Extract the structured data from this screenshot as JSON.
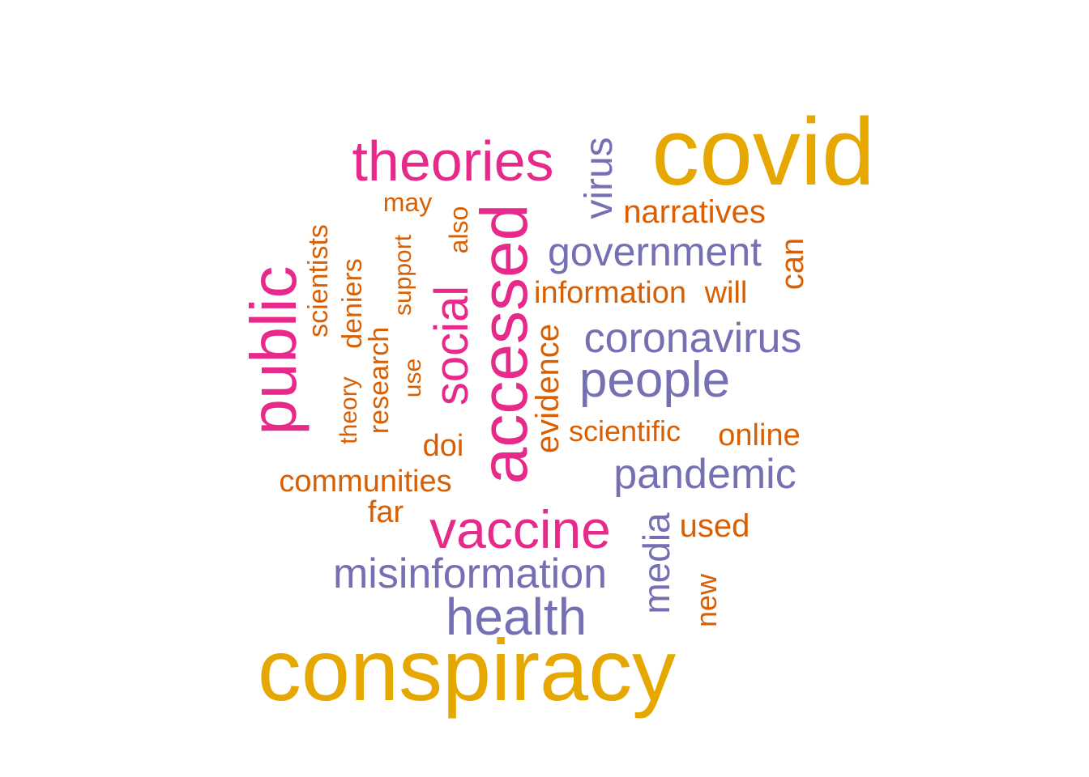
{
  "colors": {
    "gold": "#e6a800",
    "pink": "#e7298a",
    "purple": "#7570b3",
    "orange": "#d95f02"
  },
  "words": [
    {
      "text": "covid",
      "color": "gold"
    },
    {
      "text": "conspiracy",
      "color": "gold"
    },
    {
      "text": "theories",
      "color": "pink"
    },
    {
      "text": "accessed",
      "color": "pink"
    },
    {
      "text": "public",
      "color": "pink"
    },
    {
      "text": "social",
      "color": "pink"
    },
    {
      "text": "vaccine",
      "color": "pink"
    },
    {
      "text": "virus",
      "color": "purple"
    },
    {
      "text": "government",
      "color": "purple"
    },
    {
      "text": "coronavirus",
      "color": "purple"
    },
    {
      "text": "people",
      "color": "purple"
    },
    {
      "text": "pandemic",
      "color": "purple"
    },
    {
      "text": "misinformation",
      "color": "purple"
    },
    {
      "text": "health",
      "color": "purple"
    },
    {
      "text": "media",
      "color": "purple"
    },
    {
      "text": "narratives",
      "color": "orange"
    },
    {
      "text": "can",
      "color": "orange"
    },
    {
      "text": "information",
      "color": "orange"
    },
    {
      "text": "will",
      "color": "orange"
    },
    {
      "text": "may",
      "color": "orange"
    },
    {
      "text": "also",
      "color": "orange"
    },
    {
      "text": "scientists",
      "color": "orange"
    },
    {
      "text": "support",
      "color": "orange"
    },
    {
      "text": "deniers",
      "color": "orange"
    },
    {
      "text": "research",
      "color": "orange"
    },
    {
      "text": "theory",
      "color": "orange"
    },
    {
      "text": "use",
      "color": "orange"
    },
    {
      "text": "evidence",
      "color": "orange"
    },
    {
      "text": "scientific",
      "color": "orange"
    },
    {
      "text": "online",
      "color": "orange"
    },
    {
      "text": "doi",
      "color": "orange"
    },
    {
      "text": "communities",
      "color": "orange"
    },
    {
      "text": "far",
      "color": "orange"
    },
    {
      "text": "used",
      "color": "orange"
    },
    {
      "text": "new",
      "color": "orange"
    }
  ]
}
